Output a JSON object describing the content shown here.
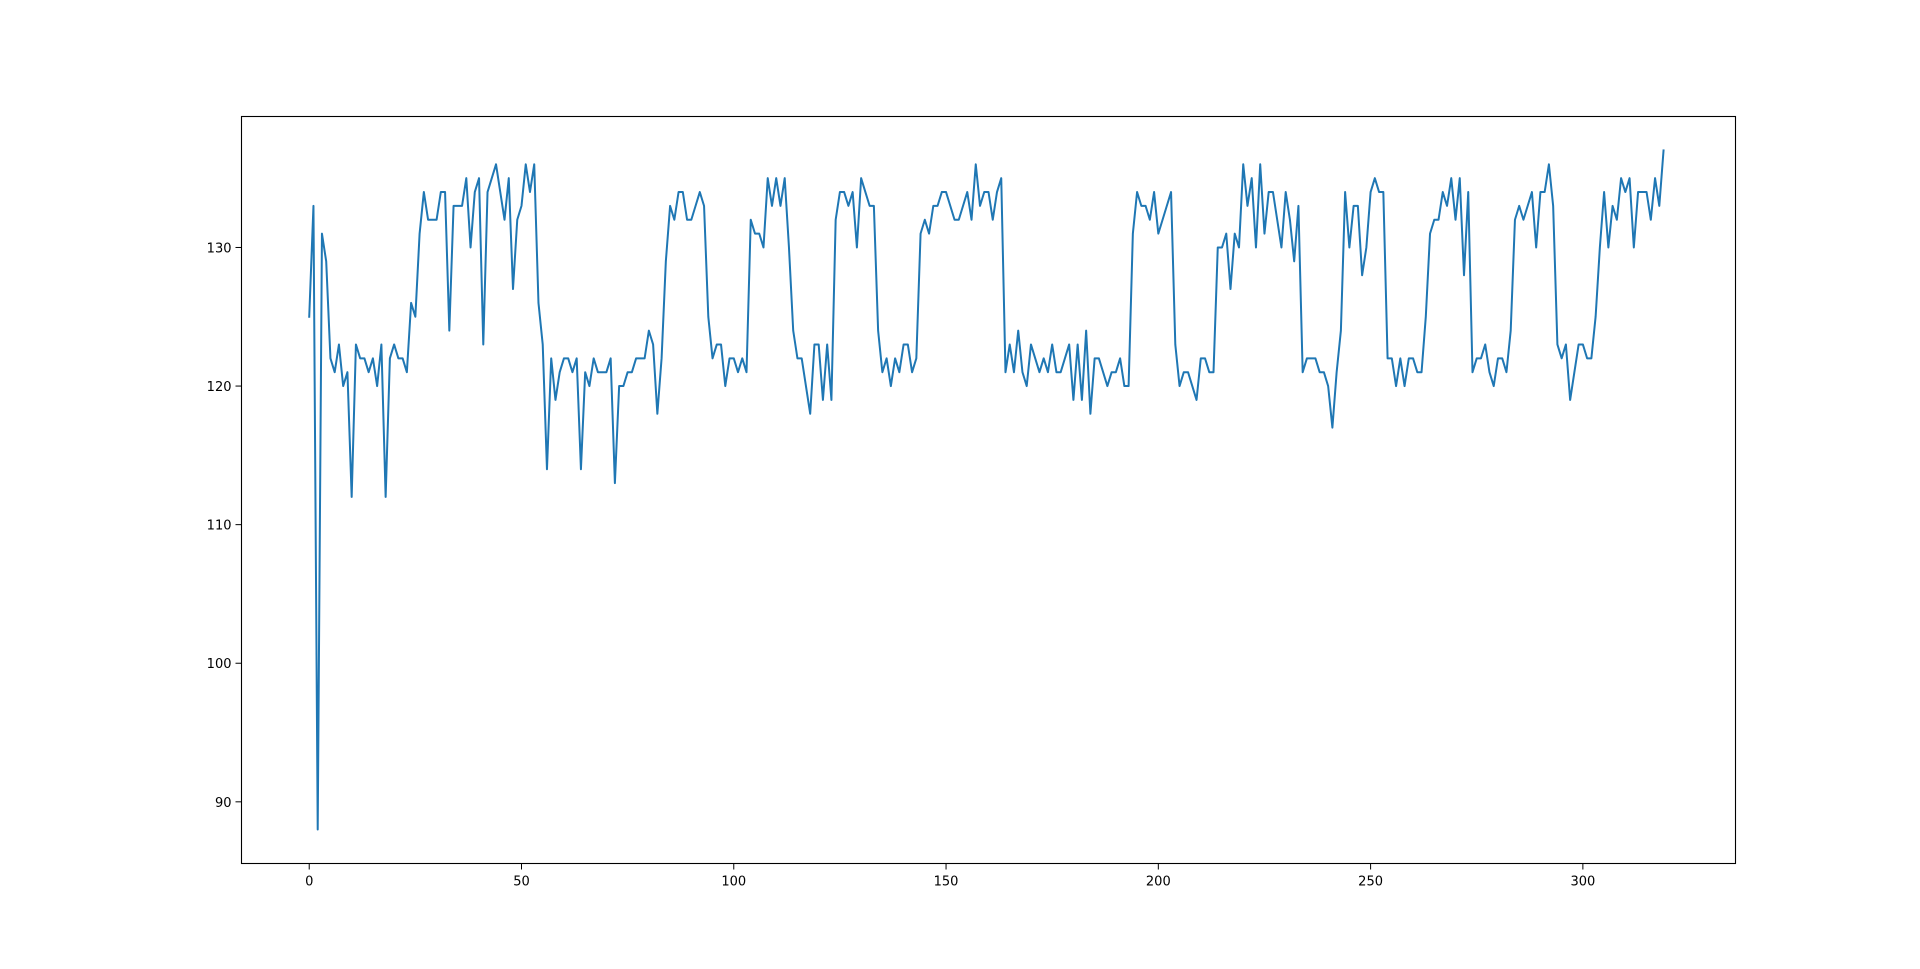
{
  "chart_data": {
    "type": "line",
    "title": "",
    "xlabel": "",
    "ylabel": "",
    "xlim": [
      -15.95,
      335.95
    ],
    "ylim": [
      85.55,
      139.45
    ],
    "x_ticks": [
      0,
      50,
      100,
      150,
      200,
      250,
      300
    ],
    "y_ticks": [
      90,
      100,
      110,
      120,
      130
    ],
    "grid": false,
    "legend": "none",
    "series": [
      {
        "color": "#1f77b4",
        "x_start": 0,
        "x_step": 1,
        "values": [
          125,
          133,
          88,
          131,
          129,
          122,
          121,
          123,
          120,
          121,
          112,
          123,
          122,
          122,
          121,
          122,
          120,
          123,
          112,
          122,
          123,
          122,
          122,
          121,
          126,
          125,
          131,
          134,
          132,
          132,
          132,
          134,
          134,
          124,
          133,
          133,
          133,
          135,
          130,
          134,
          135,
          123,
          134,
          135,
          136,
          134,
          132,
          135,
          127,
          132,
          133,
          136,
          134,
          136,
          126,
          123,
          114,
          122,
          119,
          121,
          122,
          122,
          121,
          122,
          114,
          121,
          120,
          122,
          121,
          121,
          121,
          122,
          113,
          120,
          120,
          121,
          121,
          122,
          122,
          122,
          124,
          123,
          118,
          122,
          129,
          133,
          132,
          134,
          134,
          132,
          132,
          133,
          134,
          133,
          125,
          122,
          123,
          123,
          120,
          122,
          122,
          121,
          122,
          121,
          132,
          131,
          131,
          130,
          135,
          133,
          135,
          133,
          135,
          130,
          124,
          122,
          122,
          120,
          118,
          123,
          123,
          119,
          123,
          119,
          132,
          134,
          134,
          133,
          134,
          130,
          135,
          134,
          133,
          133,
          124,
          121,
          122,
          120,
          122,
          121,
          123,
          123,
          121,
          122,
          131,
          132,
          131,
          133,
          133,
          134,
          134,
          133,
          132,
          132,
          133,
          134,
          132,
          136,
          133,
          134,
          134,
          132,
          134,
          135,
          121,
          123,
          121,
          124,
          121,
          120,
          123,
          122,
          121,
          122,
          121,
          123,
          121,
          121,
          122,
          123,
          119,
          123,
          119,
          124,
          118,
          122,
          122,
          121,
          120,
          121,
          121,
          122,
          120,
          120,
          131,
          134,
          133,
          133,
          132,
          134,
          131,
          132,
          133,
          134,
          123,
          120,
          121,
          121,
          120,
          119,
          122,
          122,
          121,
          121,
          130,
          130,
          131,
          127,
          131,
          130,
          136,
          133,
          135,
          130,
          136,
          131,
          134,
          134,
          132,
          130,
          134,
          132,
          129,
          133,
          121,
          122,
          122,
          122,
          121,
          121,
          120,
          117,
          121,
          124,
          134,
          130,
          133,
          133,
          128,
          130,
          134,
          135,
          134,
          134,
          122,
          122,
          120,
          122,
          120,
          122,
          122,
          121,
          121,
          125,
          131,
          132,
          132,
          134,
          133,
          135,
          132,
          135,
          128,
          134,
          121,
          122,
          122,
          123,
          121,
          120,
          122,
          122,
          121,
          124,
          132,
          133,
          132,
          133,
          134,
          130,
          134,
          134,
          136,
          133,
          123,
          122,
          123,
          119,
          121,
          123,
          123,
          122,
          122,
          125,
          130,
          134,
          130,
          133,
          132,
          135,
          134,
          135,
          130,
          134,
          134,
          134,
          132,
          135,
          133,
          137
        ]
      }
    ]
  }
}
